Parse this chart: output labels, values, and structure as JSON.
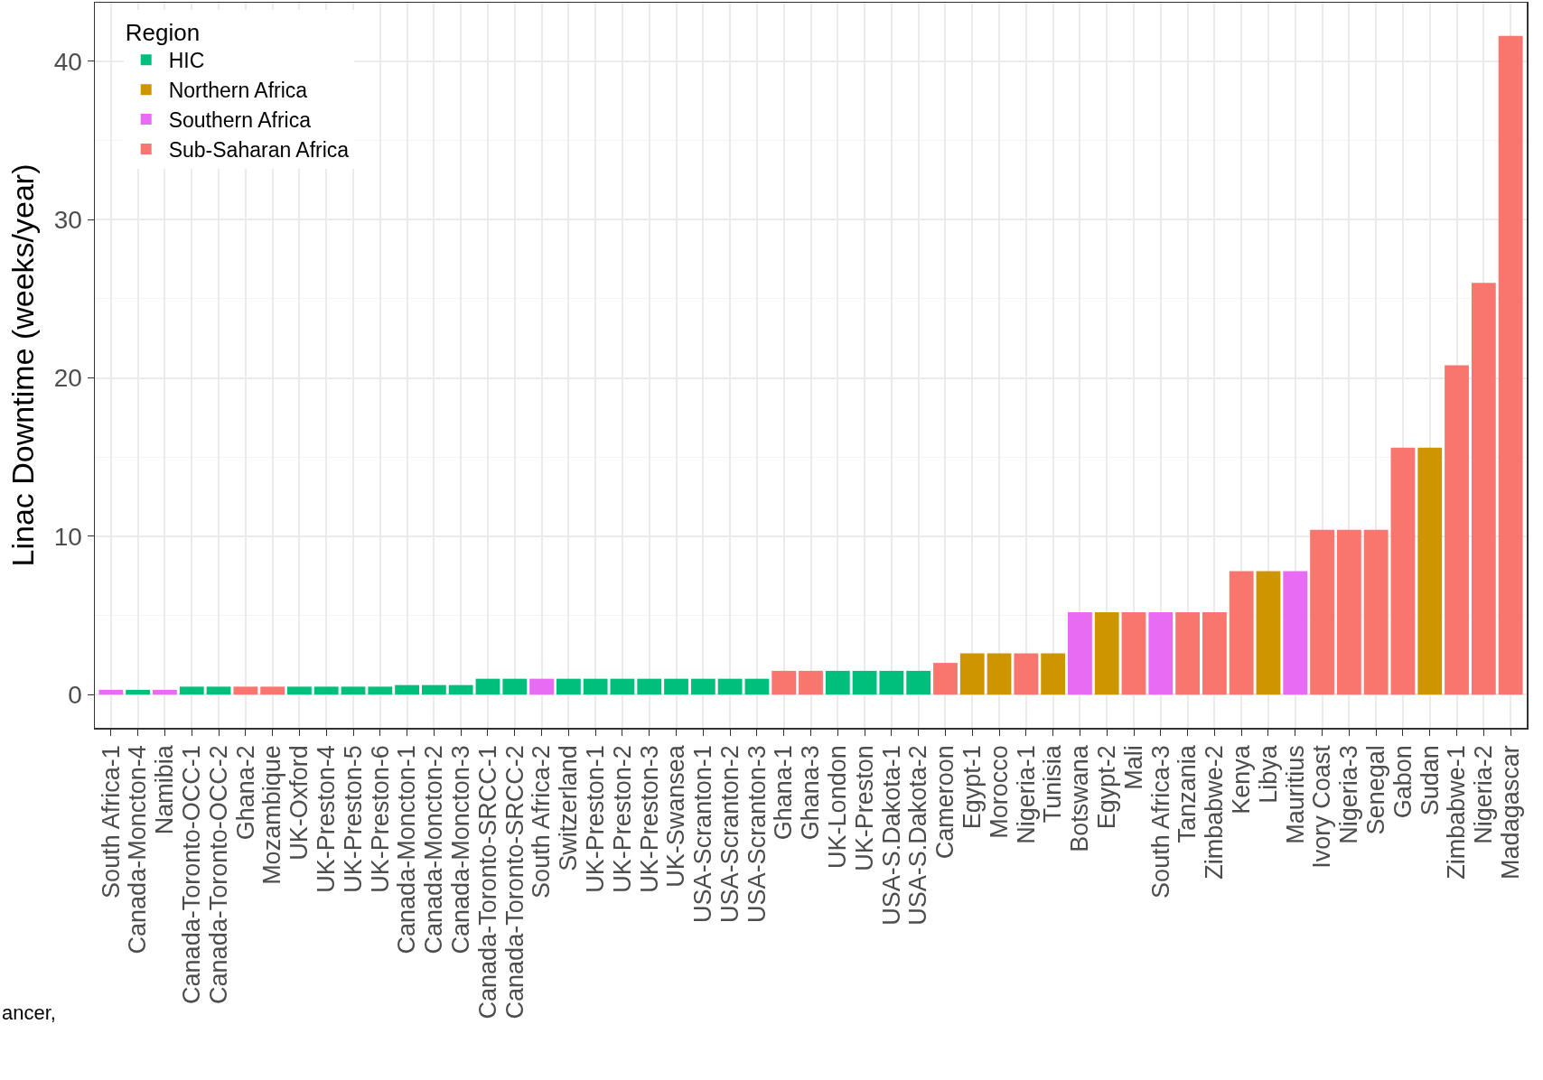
{
  "chart_data": {
    "type": "bar",
    "ylabel": "Linac Downtime (weeks/year)",
    "legend_title": "Region",
    "legend": "top left",
    "grid": true,
    "categories": [
      "South Africa-1",
      "Canada-Moncton-4",
      "Namibia",
      "Canada-Toronto-OCC-1",
      "Canada-Toronto-OCC-2",
      "Ghana-2",
      "Mozambique",
      "UK-Oxford",
      "UK-Preston-4",
      "UK-Preston-5",
      "UK-Preston-6",
      "Canada-Moncton-1",
      "Canada-Moncton-2",
      "Canada-Moncton-3",
      "Canada-Toronto-SRCC-1",
      "Canada-Toronto-SRCC-2",
      "South Africa-2",
      "Switzerland",
      "UK-Preston-1",
      "UK-Preston-2",
      "UK-Preston-3",
      "UK-Swansea",
      "USA-Scranton-1",
      "USA-Scranton-2",
      "USA-Scranton-3",
      "Ghana-1",
      "Ghana-3",
      "UK-London",
      "UK-Preston",
      "USA-S.Dakota-1",
      "USA-S.Dakota-2",
      "Cameroon",
      "Egypt-1",
      "Morocco",
      "Nigeria-1",
      "Tunisia",
      "Botswana",
      "Egypt-2",
      "Mali",
      "South Africa-3",
      "Tanzania",
      "Zimbabwe-2",
      "Kenya",
      "Libya",
      "Mauritius",
      "Ivory Coast",
      "Nigeria-3",
      "Senegal",
      "Gabon",
      "Sudan",
      "Zimbabwe-1",
      "Nigeria-2",
      "Madagascar"
    ],
    "series": [
      {
        "name": "HIC",
        "color": "#00bf7d",
        "values": [
          null,
          0.3,
          null,
          0.5,
          0.5,
          null,
          null,
          0.5,
          0.5,
          0.5,
          0.5,
          0.6,
          0.6,
          0.6,
          1.0,
          1.0,
          null,
          1.0,
          1.0,
          1.0,
          1.0,
          1.0,
          1.0,
          1.0,
          1.0,
          null,
          null,
          1.5,
          1.5,
          1.5,
          1.5,
          null,
          null,
          null,
          null,
          null,
          null,
          null,
          null,
          null,
          null,
          null,
          null,
          null,
          null,
          null,
          null,
          null,
          null,
          null,
          null,
          null,
          null
        ]
      },
      {
        "name": "Northern Africa",
        "color": "#cd9600",
        "values": [
          null,
          null,
          null,
          null,
          null,
          null,
          null,
          null,
          null,
          null,
          null,
          null,
          null,
          null,
          null,
          null,
          null,
          null,
          null,
          null,
          null,
          null,
          null,
          null,
          null,
          null,
          null,
          null,
          null,
          null,
          null,
          null,
          2.6,
          2.6,
          null,
          2.6,
          null,
          5.2,
          null,
          null,
          null,
          null,
          null,
          7.8,
          null,
          null,
          null,
          null,
          null,
          15.6,
          null,
          null,
          null
        ]
      },
      {
        "name": "Southern Africa",
        "color": "#e76bf3",
        "values": [
          0.3,
          null,
          0.3,
          null,
          null,
          null,
          null,
          null,
          null,
          null,
          null,
          null,
          null,
          null,
          null,
          null,
          1.0,
          null,
          null,
          null,
          null,
          null,
          null,
          null,
          null,
          null,
          null,
          null,
          null,
          null,
          null,
          null,
          null,
          null,
          null,
          null,
          5.2,
          null,
          null,
          5.2,
          null,
          null,
          null,
          null,
          7.8,
          null,
          null,
          null,
          null,
          null,
          null,
          null,
          null
        ]
      },
      {
        "name": "Sub-Saharan Africa",
        "color": "#f8766d",
        "values": [
          null,
          null,
          null,
          null,
          null,
          0.5,
          0.5,
          null,
          null,
          null,
          null,
          null,
          null,
          null,
          null,
          null,
          null,
          null,
          null,
          null,
          null,
          null,
          null,
          null,
          null,
          1.5,
          1.5,
          null,
          null,
          null,
          null,
          2.0,
          null,
          null,
          2.6,
          null,
          null,
          null,
          5.2,
          null,
          5.2,
          5.2,
          7.8,
          null,
          null,
          10.4,
          10.4,
          10.4,
          15.6,
          null,
          20.8,
          26.0,
          41.6
        ]
      }
    ],
    "ylim": [
      -2.1,
      43.7
    ],
    "yticks": [
      0,
      10,
      20,
      30,
      40
    ],
    "annotations": [
      "ancer,"
    ]
  }
}
